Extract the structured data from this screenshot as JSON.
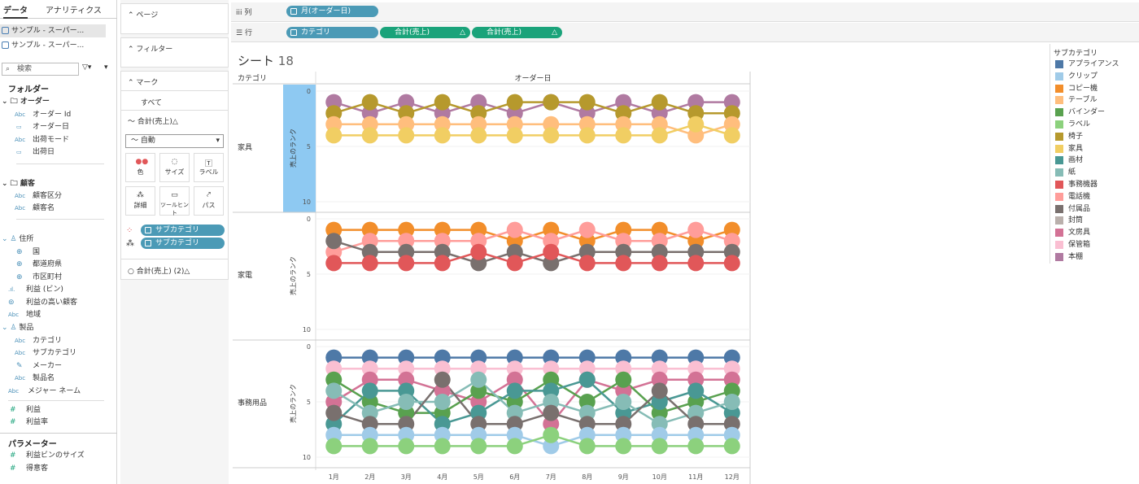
{
  "data_pane": {
    "tabs": [
      "データ",
      "アナリティクス"
    ],
    "datasources": [
      "サンプル - スーパー...",
      "サンプル - スーパー..."
    ],
    "search_placeholder": "検索",
    "folders_title": "フォルダー",
    "groups": [
      {
        "name": "オーダー",
        "fields": [
          {
            "type": "Abc",
            "label": "オーダー Id"
          },
          {
            "type": "date",
            "label": "オーダー日"
          },
          {
            "type": "Abc",
            "label": "出荷モード"
          },
          {
            "type": "date",
            "label": "出荷日"
          }
        ]
      },
      {
        "name": "顧客",
        "fields": [
          {
            "type": "Abc",
            "label": "顧客区分"
          },
          {
            "type": "Abc",
            "label": "顧客名"
          }
        ]
      }
    ],
    "geo_group": {
      "name": "住所",
      "fields": [
        "国",
        "都道府県",
        "市区町村"
      ]
    },
    "misc_fields": [
      {
        "type": "bin",
        "label": "利益 (ビン)"
      },
      {
        "type": "set",
        "label": "利益の高い顧客"
      },
      {
        "type": "Abc",
        "label": "地域"
      }
    ],
    "product_group": {
      "name": "製品",
      "fields": [
        {
          "type": "Abc",
          "label": "カテゴリ"
        },
        {
          "type": "Abc",
          "label": "サブカテゴリ"
        },
        {
          "type": "clip",
          "label": "メーカー"
        },
        {
          "type": "Abc",
          "label": "製品名"
        }
      ]
    },
    "major_field": {
      "type": "Abc",
      "label": "メジャー ネーム"
    },
    "measures": [
      "利益",
      "利益率"
    ],
    "params_title": "パラメーター",
    "params": [
      "利益ビンのサイズ",
      "得意客"
    ]
  },
  "shelves": {
    "pages": "ページ",
    "filters": "フィルター",
    "marks": "マーク",
    "all": "すべて",
    "measure1": "合計(売上)△",
    "mark_type": "自動",
    "buttons": [
      "色",
      "サイズ",
      "ラベル",
      "詳細",
      "ツールヒント",
      "パス"
    ],
    "pills": [
      "サブカテゴリ",
      "サブカテゴリ"
    ],
    "measure2": "合計(売上) (2)△"
  },
  "columns": {
    "label": "列",
    "pills": [
      "月(オーダー日)"
    ]
  },
  "rows": {
    "label": "行",
    "pills": [
      "カテゴリ",
      "合計(売上)",
      "合計(売上)"
    ]
  },
  "viz": {
    "title": "シート",
    "title_num": "18",
    "category_header": "カテゴリ",
    "column_header": "オーダー日",
    "axis_label": "売上のランク"
  },
  "legend": {
    "title": "サブカテゴリ",
    "items": [
      {
        "label": "アプライアンス",
        "color": "#4e79a7"
      },
      {
        "label": "クリップ",
        "color": "#a0cbe8"
      },
      {
        "label": "コピー機",
        "color": "#f28e2b"
      },
      {
        "label": "テーブル",
        "color": "#ffbe7d"
      },
      {
        "label": "バインダー",
        "color": "#59a14f"
      },
      {
        "label": "ラベル",
        "color": "#8cd17d"
      },
      {
        "label": "椅子",
        "color": "#b6992d"
      },
      {
        "label": "家具",
        "color": "#f1ce63"
      },
      {
        "label": "画材",
        "color": "#499894"
      },
      {
        "label": "紙",
        "color": "#86bcb6"
      },
      {
        "label": "事務機器",
        "color": "#e15759"
      },
      {
        "label": "電話機",
        "color": "#ff9d9a"
      },
      {
        "label": "付属品",
        "color": "#79706e"
      },
      {
        "label": "封筒",
        "color": "#bab0ac"
      },
      {
        "label": "文房具",
        "color": "#d37295"
      },
      {
        "label": "保管箱",
        "color": "#fabfd2"
      },
      {
        "label": "本棚",
        "color": "#b07aa1"
      }
    ]
  },
  "chart_data": {
    "type": "line",
    "x": [
      "1月",
      "2月",
      "3月",
      "4月",
      "5月",
      "6月",
      "7月",
      "8月",
      "9月",
      "10月",
      "11月",
      "12月"
    ],
    "ylabel": "売上のランク",
    "ylim": [
      0,
      10
    ],
    "yticks": [
      0,
      5,
      10
    ],
    "panels": [
      {
        "category": "家具",
        "series": [
          {
            "name": "本棚",
            "values": [
              1,
              2,
              1,
              2,
              1,
              2,
              1,
              2,
              1,
              2,
              1,
              1
            ]
          },
          {
            "name": "椅子",
            "values": [
              2,
              1,
              2,
              1,
              2,
              1,
              1,
              1,
              2,
              1,
              2,
              2
            ]
          },
          {
            "name": "テーブル",
            "values": [
              3,
              3,
              3,
              3,
              3,
              3,
              3,
              3,
              3,
              3,
              4,
              3
            ]
          },
          {
            "name": "家具",
            "values": [
              4,
              4,
              4,
              4,
              4,
              4,
              4,
              4,
              4,
              4,
              3,
              4
            ]
          }
        ]
      },
      {
        "category": "家電",
        "series": [
          {
            "name": "コピー機",
            "values": [
              1,
              1,
              1,
              1,
              1,
              2,
              1,
              2,
              1,
              1,
              2,
              1
            ]
          },
          {
            "name": "電話機",
            "values": [
              3,
              2,
              2,
              2,
              2,
              1,
              2,
              1,
              2,
              2,
              1,
              2
            ]
          },
          {
            "name": "付属品",
            "values": [
              2,
              3,
              3,
              3,
              4,
              3,
              4,
              3,
              3,
              3,
              3,
              3
            ]
          },
          {
            "name": "事務機器",
            "values": [
              4,
              4,
              4,
              4,
              3,
              4,
              3,
              4,
              4,
              4,
              4,
              4
            ]
          }
        ]
      },
      {
        "category": "事務用品",
        "series": [
          {
            "name": "アプライアンス",
            "values": [
              1,
              1,
              1,
              1,
              1,
              1,
              1,
              1,
              1,
              1,
              1,
              1
            ]
          },
          {
            "name": "保管箱",
            "values": [
              2,
              2,
              2,
              2,
              2,
              2,
              2,
              2,
              2,
              2,
              2,
              2
            ]
          },
          {
            "name": "文房具",
            "values": [
              5,
              3,
              3,
              4,
              5,
              3,
              7,
              3,
              4,
              3,
              3,
              3
            ]
          },
          {
            "name": "バインダー",
            "values": [
              3,
              5,
              6,
              6,
              4,
              5,
              3,
              5,
              3,
              6,
              5,
              4
            ]
          },
          {
            "name": "画材",
            "values": [
              7,
              4,
              4,
              7,
              6,
              4,
              4,
              3,
              6,
              5,
              4,
              6
            ]
          },
          {
            "name": "紙",
            "values": [
              4,
              6,
              5,
              5,
              3,
              6,
              5,
              6,
              5,
              7,
              6,
              5
            ]
          },
          {
            "name": "付属品",
            "values": [
              6,
              7,
              7,
              3,
              7,
              7,
              6,
              7,
              7,
              4,
              7,
              7
            ]
          },
          {
            "name": "クリップ",
            "values": [
              8,
              8,
              8,
              8,
              8,
              8,
              9,
              8,
              8,
              8,
              8,
              8
            ]
          },
          {
            "name": "ラベル",
            "values": [
              9,
              9,
              9,
              9,
              9,
              9,
              8,
              9,
              9,
              9,
              9,
              9
            ]
          }
        ]
      }
    ]
  }
}
